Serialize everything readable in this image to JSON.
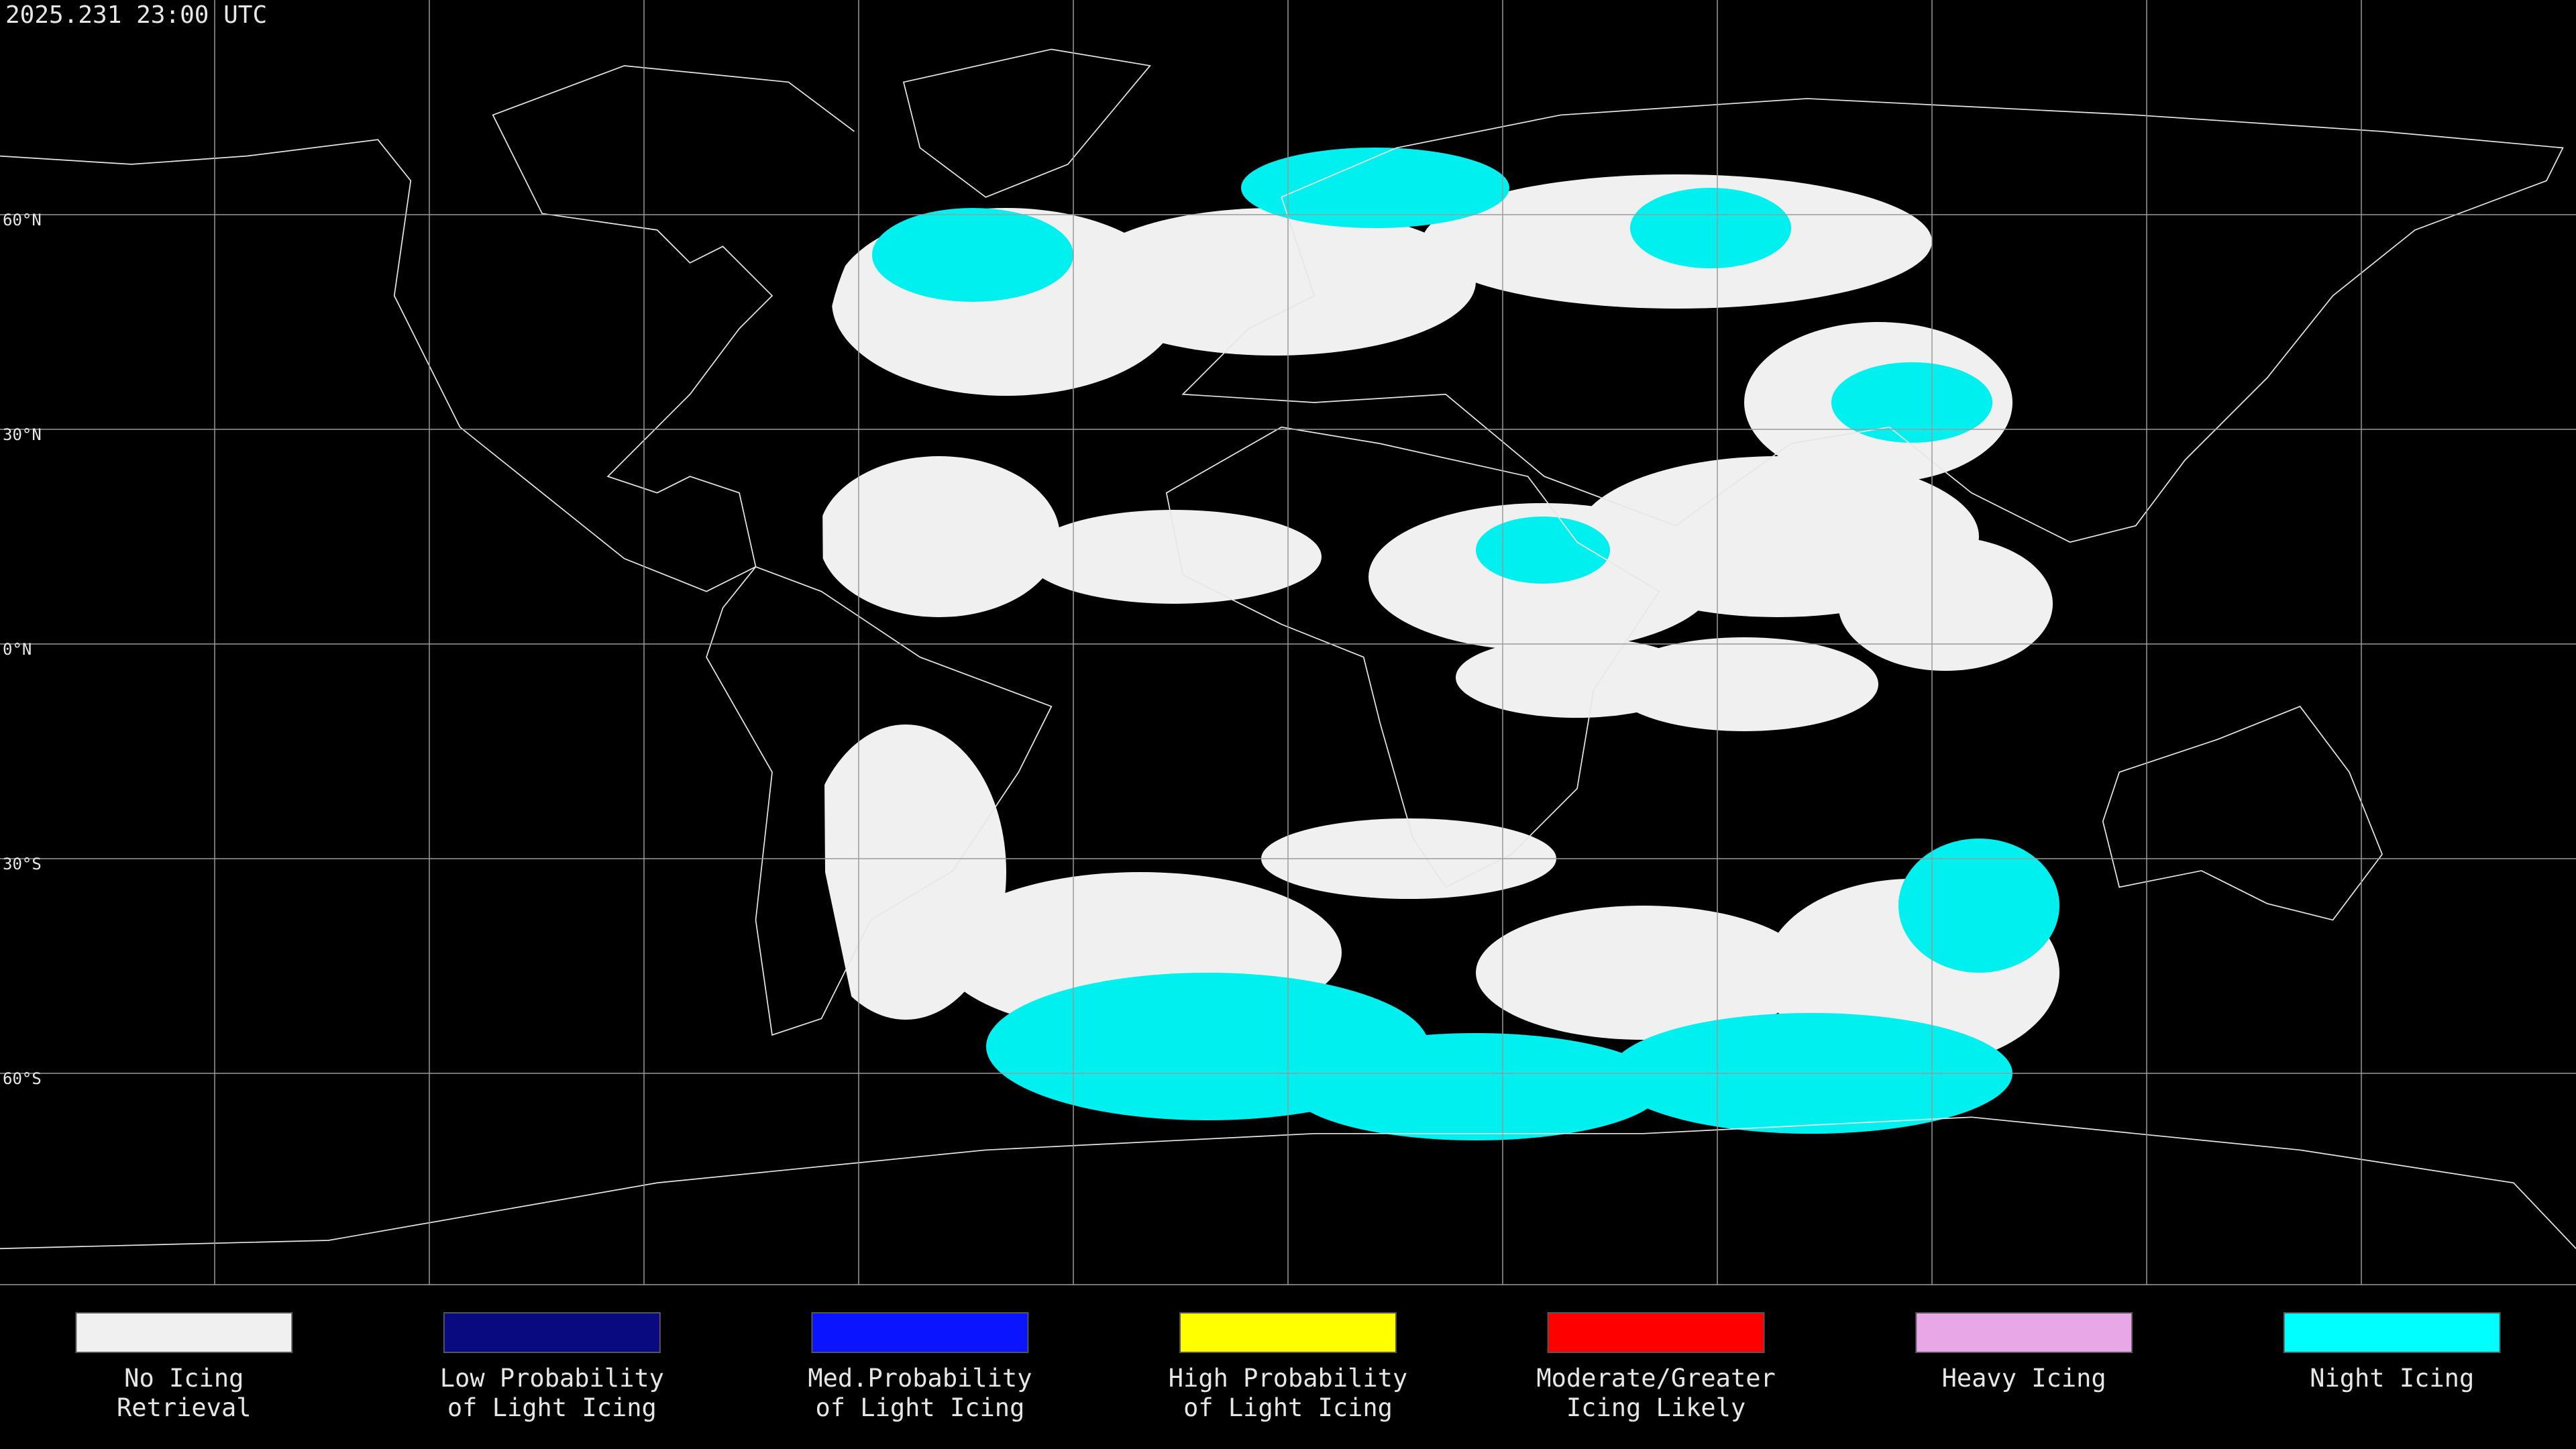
{
  "timestamp": "2025.231 23:00 UTC",
  "latitude_labels": [
    "60°N",
    "30°N",
    "0°N",
    "30°S",
    "60°S"
  ],
  "legend": [
    {
      "lines": [
        "No Icing",
        "Retrieval"
      ],
      "color": "#f0f0f0"
    },
    {
      "lines": [
        "Low Probability",
        "of Light Icing"
      ],
      "color": "#0a0a80"
    },
    {
      "lines": [
        "Med.Probability",
        "of Light Icing"
      ],
      "color": "#0a14ff"
    },
    {
      "lines": [
        "High Probability",
        "of Light Icing"
      ],
      "color": "#ffff00"
    },
    {
      "lines": [
        "Moderate/Greater",
        "Icing Likely"
      ],
      "color": "#ff0000"
    },
    {
      "lines": [
        "Heavy Icing"
      ],
      "color": "#e8a8e8"
    },
    {
      "lines": [
        "Night Icing"
      ],
      "color": "#00ffff"
    }
  ]
}
